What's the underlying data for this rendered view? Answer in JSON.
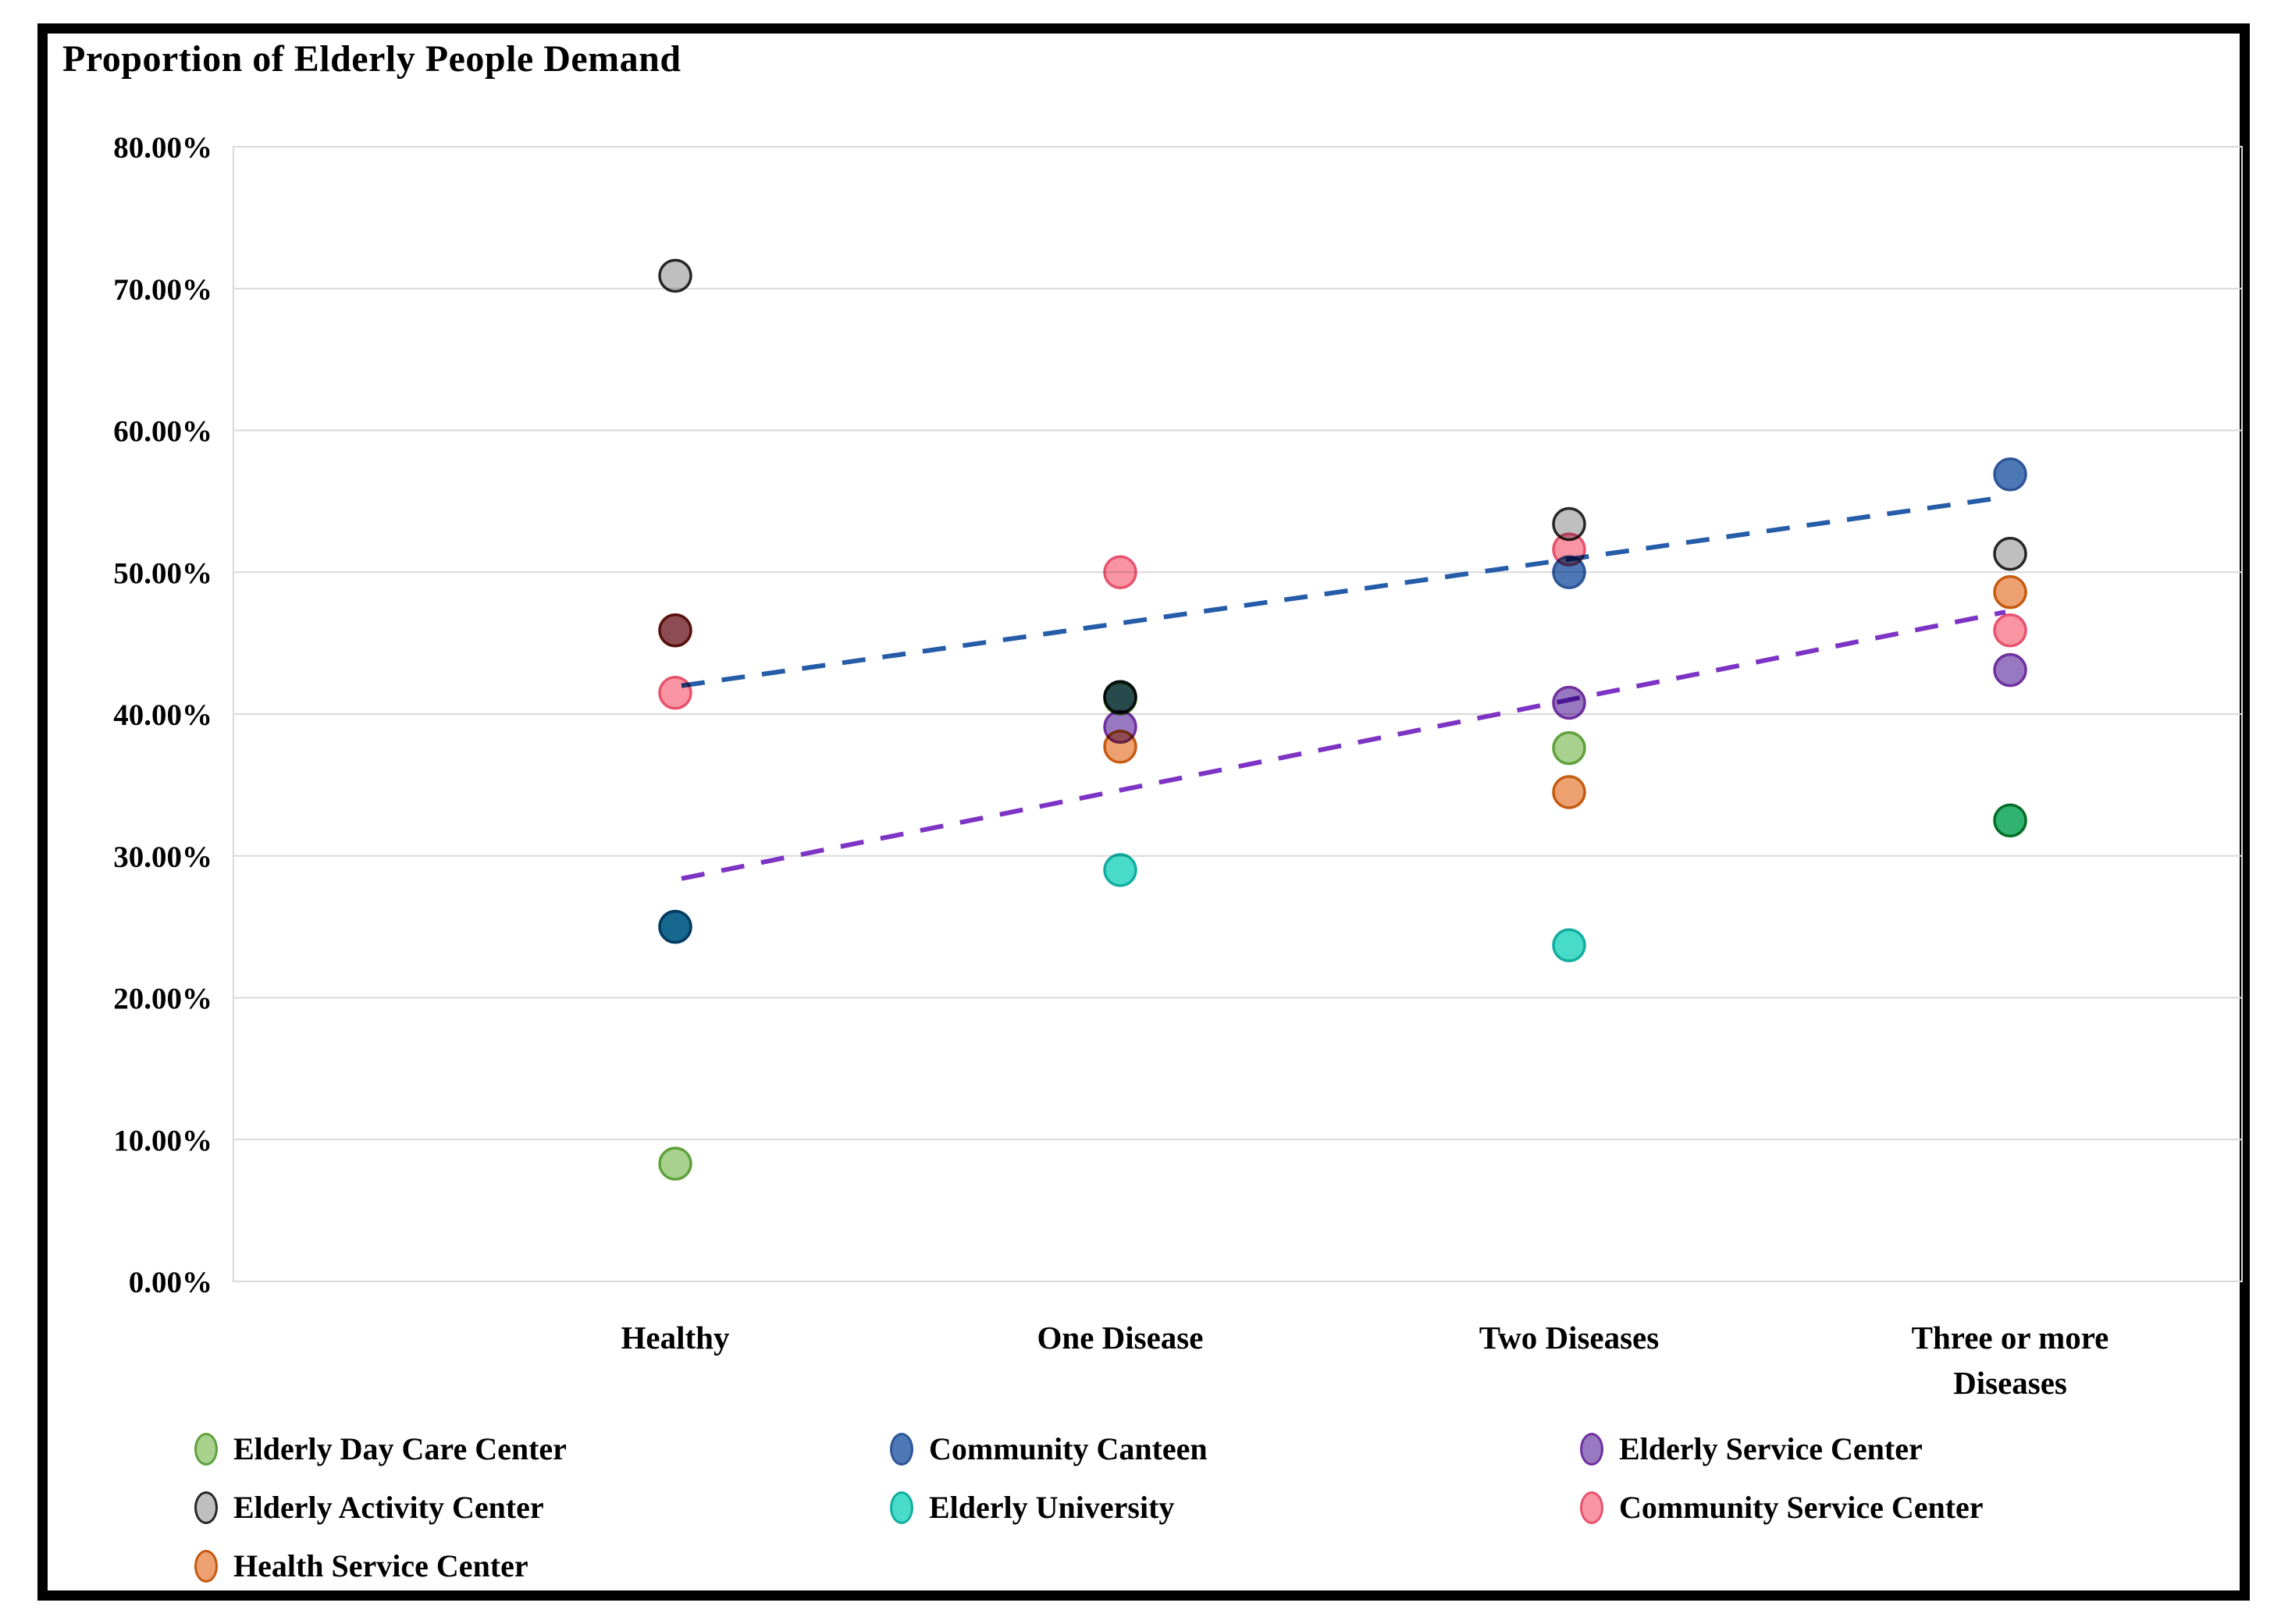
{
  "title": "Proportion of Elderly People Demand",
  "frame_color": "#000000",
  "gridline_color": "#D9D9D9",
  "chart_data": {
    "type": "scatter",
    "title": "Proportion of Elderly People Demand",
    "categories": [
      "Healthy",
      "One Disease",
      "Two Diseases",
      "Three or more Diseases"
    ],
    "x_label_wrap": [
      [
        "Healthy"
      ],
      [
        "One Disease"
      ],
      [
        "Two Diseases"
      ],
      [
        "Three or more",
        "Diseases"
      ]
    ],
    "y_axis": {
      "min": 0,
      "max": 80,
      "step": 10,
      "tick_labels": [
        "0.00%",
        "10.00%",
        "20.00%",
        "30.00%",
        "40.00%",
        "50.00%",
        "60.00%",
        "70.00%",
        "80.00%"
      ],
      "unit": "percent"
    },
    "grid": true,
    "legend_position": "bottom",
    "series": [
      {
        "name": "Elderly Day Care Center",
        "fill": "#A9D18E",
        "border": "#5FA13C",
        "values": [
          8.3,
          41.1,
          37.6,
          32.5
        ],
        "note": "One Disease and Three-or-more markers hidden beneath overlapping markers"
      },
      {
        "name": "Community Canteen",
        "fill": "#4C79B5",
        "border": "#2E5597",
        "values": [
          25.0,
          41.2,
          50.0,
          56.9
        ]
      },
      {
        "name": "Elderly Activity Center",
        "fill": "#BFBFBF",
        "border": "#262626",
        "values": [
          70.9,
          41.2,
          53.4,
          51.3
        ]
      },
      {
        "name": "Elderly Service Center",
        "fill": "#9878C0",
        "border": "#7030A0",
        "values": [
          45.9,
          39.1,
          40.8,
          43.1
        ]
      },
      {
        "name": "Health Service Center",
        "fill": "#EDA070",
        "border": "#C55A11",
        "values": [
          45.9,
          37.7,
          34.5,
          48.6
        ]
      },
      {
        "name": "Elderly University",
        "fill": "#48DBC8",
        "border": "#12ADA0",
        "values": [
          25.0,
          29.0,
          23.7,
          32.5
        ]
      },
      {
        "name": "Community Service Center",
        "fill": "#F995A3",
        "border": "#E8526E",
        "values": [
          41.5,
          50.0,
          51.6,
          45.9
        ]
      }
    ],
    "trendlines": [
      {
        "name": "blue-dashed-trendline",
        "color": "#255CA8",
        "start_pct": 42.0,
        "end_pct": 55.3
      },
      {
        "name": "purple-dashed-trendline",
        "color": "#7D33C4",
        "start_pct": 28.4,
        "end_pct": 47.2
      }
    ]
  },
  "legend": {
    "columns": [
      [
        0,
        2,
        4
      ],
      [
        1,
        5
      ],
      [
        3,
        6
      ]
    ]
  }
}
